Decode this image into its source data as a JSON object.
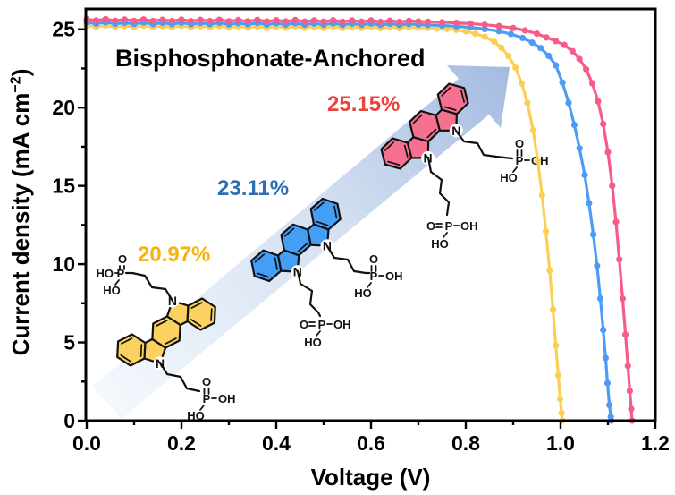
{
  "figure": {
    "headline": "Bisphosphonate-Anchored",
    "xlabel": "Voltage (V)",
    "ylabel_pre": "Current density (mA cm",
    "ylabel_sup": "−2",
    "ylabel_post": ")"
  },
  "arrow": {
    "gradient_start": "#F3F8FC",
    "gradient_mid": "#D2DFF1",
    "gradient_end": "#9FB7DF"
  },
  "molecules": [
    {
      "id": "yellow",
      "efficiency": "20.97%",
      "efficiency_color": "#F7B30B",
      "fill": "#FBD25F",
      "outline": "#111111",
      "atom_n": "N",
      "atom_p": "P",
      "atom_o": "O",
      "atom_oh": "OH",
      "atom_ho": "HO"
    },
    {
      "id": "blue",
      "efficiency": "23.11%",
      "efficiency_color": "#2E6FB4",
      "fill": "#459EF6",
      "outline": "#111111",
      "atom_n": "N",
      "atom_p": "P",
      "atom_o": "O",
      "atom_oh": "OH",
      "atom_ho": "HO"
    },
    {
      "id": "pink",
      "efficiency": "25.15%",
      "efficiency_color": "#E8433C",
      "fill": "#F6718F",
      "outline": "#111111",
      "atom_n": "N",
      "atom_p": "P",
      "atom_o": "O",
      "atom_oh": "OH",
      "atom_ho": "HO"
    }
  ],
  "chart_data": {
    "type": "line",
    "title": "Bisphosphonate-Anchored",
    "xlabel": "Voltage (V)",
    "ylabel": "Current density (mA cm⁻²)",
    "xlim": [
      0.0,
      1.2
    ],
    "ylim": [
      0,
      26.3
    ],
    "grid": false,
    "legend": "none",
    "frame": "box",
    "tick_direction": "out",
    "x_ticks": [
      0.0,
      0.2,
      0.4,
      0.6,
      0.8,
      1.0,
      1.2
    ],
    "x_tick_labels": [
      "0.0",
      "0.2",
      "0.4",
      "0.6",
      "0.8",
      "1.0",
      "1.2"
    ],
    "x_minor_ticks": [
      0.1,
      0.3,
      0.5,
      0.7,
      0.9,
      1.1
    ],
    "y_ticks": [
      0,
      5,
      10,
      15,
      20,
      25
    ],
    "y_tick_labels": [
      "0",
      "5",
      "10",
      "15",
      "20",
      "25"
    ],
    "y_minor_ticks": [
      2.5,
      7.5,
      12.5,
      17.5,
      22.5
    ],
    "annotations": [
      {
        "text": "Bisphosphonate-Anchored",
        "color": "#000000"
      },
      {
        "text": "25.15%",
        "color": "#E8433C"
      },
      {
        "text": "23.11%",
        "color": "#2E6FB4"
      },
      {
        "text": "20.97%",
        "color": "#F7B30B"
      }
    ],
    "series": [
      {
        "label": "20.97%",
        "color": "#FBCF55",
        "jsc_ma_cm2": 25.2,
        "voc_v": 1.004,
        "points": [
          [
            0.0,
            25.24
          ],
          [
            0.02,
            25.16
          ],
          [
            0.04,
            25.25
          ],
          [
            0.06,
            25.15
          ],
          [
            0.08,
            25.22
          ],
          [
            0.1,
            25.14
          ],
          [
            0.12,
            25.23
          ],
          [
            0.14,
            25.13
          ],
          [
            0.16,
            25.21
          ],
          [
            0.18,
            25.13
          ],
          [
            0.2,
            25.22
          ],
          [
            0.22,
            25.12
          ],
          [
            0.24,
            25.2
          ],
          [
            0.26,
            25.12
          ],
          [
            0.28,
            25.21
          ],
          [
            0.3,
            25.11
          ],
          [
            0.32,
            25.19
          ],
          [
            0.34,
            25.11
          ],
          [
            0.36,
            25.2
          ],
          [
            0.38,
            25.1
          ],
          [
            0.4,
            25.18
          ],
          [
            0.42,
            25.1
          ],
          [
            0.44,
            25.19
          ],
          [
            0.46,
            25.09
          ],
          [
            0.48,
            25.17
          ],
          [
            0.5,
            25.09
          ],
          [
            0.52,
            25.18
          ],
          [
            0.54,
            25.08
          ],
          [
            0.56,
            25.16
          ],
          [
            0.58,
            25.08
          ],
          [
            0.6,
            25.17
          ],
          [
            0.62,
            25.07
          ],
          [
            0.64,
            25.15
          ],
          [
            0.66,
            25.07
          ],
          [
            0.68,
            25.14
          ],
          [
            0.7,
            25.1
          ],
          [
            0.72,
            25.1
          ],
          [
            0.74,
            25.07
          ],
          [
            0.76,
            25.03
          ],
          [
            0.78,
            24.97
          ],
          [
            0.8,
            24.87
          ],
          [
            0.82,
            24.73
          ],
          [
            0.84,
            24.52
          ],
          [
            0.86,
            24.2
          ],
          [
            0.875,
            23.82
          ],
          [
            0.89,
            23.3
          ],
          [
            0.905,
            22.55
          ],
          [
            0.918,
            21.55
          ],
          [
            0.93,
            20.3
          ],
          [
            0.942,
            18.55
          ],
          [
            0.952,
            16.6
          ],
          [
            0.961,
            14.4
          ],
          [
            0.969,
            12.1
          ],
          [
            0.977,
            9.6
          ],
          [
            0.984,
            7.1
          ],
          [
            0.99,
            4.8
          ],
          [
            0.995,
            2.9
          ],
          [
            0.999,
            1.4
          ],
          [
            1.002,
            0.5
          ],
          [
            1.004,
            0.0
          ]
        ]
      },
      {
        "label": "23.11%",
        "color": "#4C9CF5",
        "jsc_ma_cm2": 25.4,
        "voc_v": 1.107,
        "points": [
          [
            0.0,
            25.44
          ],
          [
            0.02,
            25.36
          ],
          [
            0.04,
            25.45
          ],
          [
            0.06,
            25.35
          ],
          [
            0.08,
            25.42
          ],
          [
            0.1,
            25.34
          ],
          [
            0.12,
            25.43
          ],
          [
            0.14,
            25.33
          ],
          [
            0.16,
            25.41
          ],
          [
            0.18,
            25.33
          ],
          [
            0.2,
            25.42
          ],
          [
            0.22,
            25.32
          ],
          [
            0.24,
            25.4
          ],
          [
            0.26,
            25.32
          ],
          [
            0.28,
            25.41
          ],
          [
            0.3,
            25.31
          ],
          [
            0.32,
            25.39
          ],
          [
            0.34,
            25.31
          ],
          [
            0.36,
            25.4
          ],
          [
            0.38,
            25.3
          ],
          [
            0.4,
            25.38
          ],
          [
            0.42,
            25.3
          ],
          [
            0.44,
            25.39
          ],
          [
            0.46,
            25.29
          ],
          [
            0.48,
            25.37
          ],
          [
            0.5,
            25.29
          ],
          [
            0.52,
            25.38
          ],
          [
            0.54,
            25.28
          ],
          [
            0.56,
            25.36
          ],
          [
            0.58,
            25.28
          ],
          [
            0.6,
            25.37
          ],
          [
            0.62,
            25.27
          ],
          [
            0.64,
            25.35
          ],
          [
            0.66,
            25.27
          ],
          [
            0.68,
            25.34
          ],
          [
            0.7,
            25.3
          ],
          [
            0.72,
            25.28
          ],
          [
            0.75,
            25.24
          ],
          [
            0.78,
            25.19
          ],
          [
            0.81,
            25.12
          ],
          [
            0.84,
            25.02
          ],
          [
            0.87,
            24.88
          ],
          [
            0.895,
            24.7
          ],
          [
            0.92,
            24.45
          ],
          [
            0.94,
            24.15
          ],
          [
            0.958,
            23.8
          ],
          [
            0.975,
            23.3
          ],
          [
            0.99,
            22.7
          ],
          [
            1.004,
            21.6
          ],
          [
            1.017,
            20.3
          ],
          [
            1.029,
            18.9
          ],
          [
            1.04,
            17.4
          ],
          [
            1.051,
            15.7
          ],
          [
            1.06,
            13.9
          ],
          [
            1.069,
            11.9
          ],
          [
            1.077,
            9.9
          ],
          [
            1.084,
            7.8
          ],
          [
            1.09,
            5.8
          ],
          [
            1.095,
            4.0
          ],
          [
            1.099,
            2.4
          ],
          [
            1.103,
            1.0
          ],
          [
            1.106,
            0.25
          ],
          [
            1.107,
            0.0
          ]
        ]
      },
      {
        "label": "25.15%",
        "color": "#F75C86",
        "jsc_ma_cm2": 25.6,
        "voc_v": 1.151,
        "points": [
          [
            0.0,
            25.64
          ],
          [
            0.02,
            25.56
          ],
          [
            0.04,
            25.65
          ],
          [
            0.06,
            25.55
          ],
          [
            0.08,
            25.62
          ],
          [
            0.1,
            25.54
          ],
          [
            0.12,
            25.63
          ],
          [
            0.14,
            25.53
          ],
          [
            0.16,
            25.61
          ],
          [
            0.18,
            25.53
          ],
          [
            0.2,
            25.62
          ],
          [
            0.22,
            25.52
          ],
          [
            0.24,
            25.6
          ],
          [
            0.26,
            25.52
          ],
          [
            0.28,
            25.61
          ],
          [
            0.3,
            25.51
          ],
          [
            0.32,
            25.59
          ],
          [
            0.34,
            25.51
          ],
          [
            0.36,
            25.6
          ],
          [
            0.38,
            25.5
          ],
          [
            0.4,
            25.58
          ],
          [
            0.42,
            25.5
          ],
          [
            0.44,
            25.59
          ],
          [
            0.46,
            25.49
          ],
          [
            0.48,
            25.57
          ],
          [
            0.5,
            25.49
          ],
          [
            0.52,
            25.58
          ],
          [
            0.54,
            25.48
          ],
          [
            0.56,
            25.56
          ],
          [
            0.58,
            25.48
          ],
          [
            0.6,
            25.57
          ],
          [
            0.62,
            25.47
          ],
          [
            0.64,
            25.55
          ],
          [
            0.66,
            25.47
          ],
          [
            0.68,
            25.54
          ],
          [
            0.7,
            25.5
          ],
          [
            0.72,
            25.48
          ],
          [
            0.75,
            25.45
          ],
          [
            0.78,
            25.41
          ],
          [
            0.81,
            25.36
          ],
          [
            0.84,
            25.29
          ],
          [
            0.87,
            25.2
          ],
          [
            0.9,
            25.08
          ],
          [
            0.925,
            24.93
          ],
          [
            0.95,
            24.72
          ],
          [
            0.97,
            24.48
          ],
          [
            0.99,
            24.25
          ],
          [
            1.008,
            24.0
          ],
          [
            1.025,
            23.6
          ],
          [
            1.04,
            23.1
          ],
          [
            1.054,
            22.45
          ],
          [
            1.067,
            21.55
          ],
          [
            1.079,
            20.4
          ],
          [
            1.09,
            18.95
          ],
          [
            1.1,
            17.15
          ],
          [
            1.109,
            15.0
          ],
          [
            1.117,
            12.7
          ],
          [
            1.124,
            10.3
          ],
          [
            1.131,
            7.8
          ],
          [
            1.137,
            5.5
          ],
          [
            1.142,
            3.5
          ],
          [
            1.146,
            1.9
          ],
          [
            1.149,
            0.75
          ],
          [
            1.151,
            0.0
          ]
        ]
      }
    ]
  }
}
